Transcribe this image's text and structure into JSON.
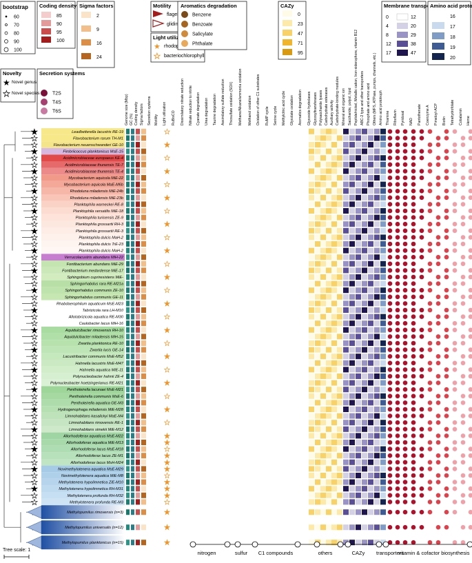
{
  "legend": {
    "bootstrap": {
      "title": "bootstrap",
      "items": [
        "60",
        "70",
        "80",
        "90",
        "100"
      ]
    },
    "coding_density": {
      "title": "Coding density (%)",
      "items": [
        {
          "label": "85",
          "color": "#f4cccc"
        },
        {
          "label": "90",
          "color": "#e59a9a"
        },
        {
          "label": "95",
          "color": "#cc4b4b"
        },
        {
          "label": "100",
          "color": "#a51c1c"
        }
      ]
    },
    "sigma": {
      "title": "Sigma factors",
      "items": [
        {
          "label": "2",
          "color": "#fbe3c8"
        },
        {
          "label": "9",
          "color": "#f2bf8a"
        },
        {
          "label": "16",
          "color": "#dd8e46"
        },
        {
          "label": "24",
          "color": "#b5651d"
        }
      ]
    },
    "motility": {
      "title": "Motility",
      "items": [
        "flagella",
        "gliding motility"
      ]
    },
    "aromatics": {
      "title": "Aromatics degradation",
      "items": [
        {
          "label": "Benzene",
          "color": "#7a4a18"
        },
        {
          "label": "Benzoate",
          "color": "#a5651f"
        },
        {
          "label": "Salicylate",
          "color": "#cf8a3a"
        },
        {
          "label": "Phthalate",
          "color": "#e8a95a"
        }
      ]
    },
    "cazy": {
      "title": "CAZy",
      "items": [
        {
          "label": "0",
          "color": "#fffbe6"
        },
        {
          "label": "23",
          "color": "#fde9a8"
        },
        {
          "label": "47",
          "color": "#f8d167"
        },
        {
          "label": "71",
          "color": "#f0b52b"
        },
        {
          "label": "95",
          "color": "#d99a10"
        }
      ]
    },
    "membrane": {
      "title": "Membrane transporters",
      "left": [
        "0",
        "4",
        "8",
        "12",
        "17"
      ],
      "right": [
        "12",
        "20",
        "29",
        "38",
        "47"
      ],
      "colors": [
        "#ffffff",
        "#d4d0e6",
        "#9a93c6",
        "#5a4f96",
        "#1f1650"
      ]
    },
    "amino": {
      "title": "Amino acid prototrophs",
      "items": [
        {
          "label": "16",
          "color": "#ffffff"
        },
        {
          "label": "17",
          "color": "#c9d9ee"
        },
        {
          "label": "18",
          "color": "#7f9cc7"
        },
        {
          "label": "19",
          "color": "#3e5c93"
        },
        {
          "label": "20",
          "color": "#13254f"
        }
      ]
    },
    "light": {
      "title": "Light utilization",
      "items": [
        "rhodopsin",
        "bacteriochlorophyll"
      ]
    },
    "secretion": {
      "title": "Secretion systems",
      "items": [
        {
          "label": "T2S",
          "color": "#7a1038"
        },
        {
          "label": "T4S",
          "color": "#a54070"
        },
        {
          "label": "T6S",
          "color": "#c87aa0"
        }
      ]
    },
    "novelty": {
      "title": "Novelty",
      "items": [
        "Novel genus",
        "Novel species"
      ]
    }
  },
  "columns": [
    "Genome size (Mbp)",
    "GC (%)",
    "Coding density",
    "Sigma factors",
    "Secretion systems",
    "Motility",
    "Light utilization",
    "RuBisCO",
    "Dissimilatory nitrate reduction",
    "Nitrate reduction to nitrite",
    "Cyanate degradation",
    "Urea degradation",
    "Taurine degradation",
    "Assimilatory sulfate reduction",
    "Thiosulfate oxidation (SOX)",
    "Methane/Alkane/ammonia oxidation",
    "Methanol oxidation",
    "Oxidation of other C1 substrates",
    "RuMP cycle",
    "Serine cycle",
    "Methylcitric acid cycle",
    "Glycolate oxidation",
    "Aromatics degradation",
    "Glycoside hydrolases",
    "Glycosyltransferases",
    "Polysaccharide lyases",
    "Carbohydrate esterases",
    "Auxiliary activity",
    "Carbohydrate-binding modules",
    "Mineral and organic ion",
    "Saccharide, polyol, lipid",
    "Peptide/nickel, Metallic cation, Iron-siderophore, vitamin B12",
    "ABC-2 type and other transporters",
    "Phosphate and amino acid",
    "Others (MFS, ATPase, pumps, channels, etc.)",
    "Amino acid prototroph",
    "Thiamine",
    "Riboflavin",
    "Pyridoxal",
    "NAD",
    "Pantothenate",
    "Coenzyme A",
    "Pimeloyl-ACP",
    "Biotin",
    "Tetrahydrofolate",
    "Cobalamin",
    "Heme"
  ],
  "taxa": [
    {
      "name": "Leadbetterella lacustris RE-19",
      "bg": "#f7e98a"
    },
    {
      "name": "Flavobacterium rarum TH-M1",
      "bg": "#f7e98a"
    },
    {
      "name": "Flavobacterium neuenschwanderi GE-10",
      "bg": "#f5e58a"
    },
    {
      "name": "Fimbriicoccus planktonicus MsE-15",
      "bg": "#d7b8e0"
    },
    {
      "name": "Acidimicrobiaceae europaeus KE-4",
      "bg": "#e24a4a"
    },
    {
      "name": "Acidimicrobiaceae thunensis TE-7",
      "bg": "#e76a6a"
    },
    {
      "name": "Acidimicrobiaceae thunensis TE-4",
      "bg": "#ec8a8a"
    },
    {
      "name": "Mycobacterium aquicola MiE-22",
      "bg": "#f29a8a"
    },
    {
      "name": "Mycobacterium aquicola MaE-M6b",
      "bg": "#f4a898"
    },
    {
      "name": "Rhodoluna miladensis MiE-24b",
      "bg": "#f7b7a8"
    },
    {
      "name": "Rhodoluna miladensis MiE-23b",
      "bg": "#f9c5b7"
    },
    {
      "name": "Planktophila warneckei RE-8",
      "bg": "#fbd3c6"
    },
    {
      "name": "Planktophila versatilis MiE-18",
      "bg": "#fcdcd0"
    },
    {
      "name": "Planktophila turicensis ZE-9",
      "bg": "#fde3d9"
    },
    {
      "name": "Planktophila grossartii RH-3",
      "bg": "#fde8e0"
    },
    {
      "name": "Planktophila grossartii RE-3",
      "bg": "#feede7"
    },
    {
      "name": "Planktophila dulcis MaH-2",
      "bg": "#fef1ec"
    },
    {
      "name": "Planktophila dulcis TrE-23",
      "bg": "#fef4f0"
    },
    {
      "name": "Planktophila dulcis MaH-2",
      "bg": "#fff7f4"
    },
    {
      "name": "Verrucolacustris abundans MiH-22",
      "bg": "#c77dd0"
    },
    {
      "name": "Fontibacterium abundans MiE-29",
      "bg": "#c5e5b0"
    },
    {
      "name": "Fontibacterium medardense MiE-17",
      "bg": "#cbe8b8"
    },
    {
      "name": "Sphingobium cupriresistens MiE-",
      "bg": "#d2ebbf"
    },
    {
      "name": "Sphingorhabdus rara RE-M21a",
      "bg": "#b8e0a6"
    },
    {
      "name": "Sphingorhabdus communis ZE-10",
      "bg": "#bfe3ac"
    },
    {
      "name": "Sphingorhabdus communis GE-11",
      "bg": "#c6e6b2"
    },
    {
      "name": "Rhabdaerophilum aquaticum MsE-M23",
      "bg": "#ffffff"
    },
    {
      "name": "Tabrizicola rara LH-M10",
      "bg": "#ffffff"
    },
    {
      "name": "Allotabrizicola aquatica RE-M30",
      "bg": "#ffffff"
    },
    {
      "name": "Caulobacter lacus MiH-16",
      "bg": "#ffffff"
    },
    {
      "name": "Aquidulcibacter rimovensis RH-10",
      "bg": "#a9dca0"
    },
    {
      "name": "Aquidulcibacter miladensis MiH-15",
      "bg": "#b0dfa7"
    },
    {
      "name": "Zwartia planktonica RE-10",
      "bg": "#b7e2ae"
    },
    {
      "name": "Zwartia lucis GE-14",
      "bg": "#bee5b5"
    },
    {
      "name": "Lacustribacter communis MsE-M52",
      "bg": "#c5e8bc"
    },
    {
      "name": "Hahnella lacustris MsE-M47",
      "bg": "#cbeac3"
    },
    {
      "name": "Hahnella aquatica MiE-11",
      "bg": "#d1edca"
    },
    {
      "name": "Polynucleobacter hahnii ZE-4",
      "bg": "#d6efd0"
    },
    {
      "name": "Polynucleobacter hoetzingerianus RE-M21",
      "bg": "#dbf1d6"
    },
    {
      "name": "Pentholeirella lacunaei MsE-M21",
      "bg": "#9ed69a"
    },
    {
      "name": "Pentholeirella communis MsE-6",
      "bg": "#a6d9a2"
    },
    {
      "name": "Pentholeirella aquatica GE-M3",
      "bg": "#aedcaa"
    },
    {
      "name": "Hydrogenophaga miladensis MiE-M28",
      "bg": "#b6dfb2"
    },
    {
      "name": "Limnohabitans kasalickyi MaE-M4",
      "bg": "#bee2ba"
    },
    {
      "name": "Limnohabitans rimovensis RE-1",
      "bg": "#c6e5c2"
    },
    {
      "name": "Limnohabitans simekii MiE-M12",
      "bg": "#cee8ca"
    },
    {
      "name": "Allorhodoferax aquaticus MsE-M22",
      "bg": "#9fd5a3"
    },
    {
      "name": "Allorhodoferax aquatica MiE-M13",
      "bg": "#a7d9ab"
    },
    {
      "name": "Allorhodoferax lacus MsE-M18",
      "bg": "#afddb3"
    },
    {
      "name": "Allorhodoferax lacus ZE-M1",
      "bg": "#b7e1bb"
    },
    {
      "name": "Allorhodoferax lacus MsH-M24",
      "bg": "#bfe5c3"
    },
    {
      "name": "Novimethylotenera aquatica MsE-M29",
      "bg": "#a6cbe6"
    },
    {
      "name": "Novimethylotenera aquatica MiE-M8",
      "bg": "#aed0e9"
    },
    {
      "name": "Methylotenera hypolimnetica ZiE-M10",
      "bg": "#b6d5ec"
    },
    {
      "name": "Methylotenera hypolimnetica RH-M31",
      "bg": "#bedaef"
    },
    {
      "name": "Methylotenera profunda RH-M32",
      "bg": "#c6dff2"
    },
    {
      "name": "Methylotenera profunda RE-M3",
      "bg": "#cee4f5"
    },
    {
      "name": "Methylopumilus rimovensis (n=3)",
      "bg": "#5a86c8"
    },
    {
      "name": "Methylopumilus universalis (n=12)",
      "bg": "#3b6ab8"
    },
    {
      "name": "Methylopumilus planktonicus (n=15)",
      "bg": "#1f4fa3"
    }
  ],
  "categories": [
    "nitrogen",
    "sulfur",
    "C1 compounds",
    "others",
    "CAZy",
    "transporters",
    "vitamin & cofactor biosynthesis"
  ],
  "tree_scale": "Tree scale: 1"
}
